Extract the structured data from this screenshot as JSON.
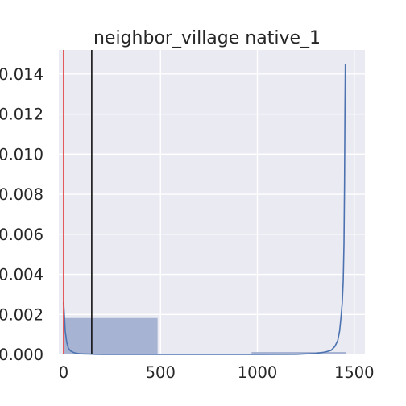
{
  "chart_data": {
    "type": "histogram",
    "title": "neighbor_village native_1",
    "xlim": [
      -25,
      1555
    ],
    "ylim": [
      0,
      0.0152
    ],
    "x_ticks": [
      0,
      500,
      1000,
      1500
    ],
    "x_tick_labels": [
      "0",
      "500",
      "1000",
      "1500"
    ],
    "y_ticks": [
      0.0,
      0.002,
      0.004,
      0.006,
      0.008,
      0.01,
      0.012,
      0.014
    ],
    "y_tick_labels": [
      "0.000",
      "0.002",
      "0.004",
      "0.006",
      "0.008",
      "0.010",
      "0.012",
      "0.014"
    ],
    "grid": true,
    "bins": [
      {
        "x0": 0,
        "x1": 485,
        "density": 0.00182
      },
      {
        "x0": 485,
        "x1": 970,
        "density": 3e-05
      },
      {
        "x0": 970,
        "x1": 1455,
        "density": 0.00012
      }
    ],
    "kde": {
      "x": [
        0,
        4,
        8,
        16,
        25,
        35,
        50,
        65,
        80,
        100,
        130,
        160,
        200,
        300,
        500,
        800,
        1000,
        1200,
        1300,
        1350,
        1380,
        1400,
        1415,
        1425,
        1432,
        1438,
        1443,
        1447,
        1450,
        1452,
        1454
      ],
      "y": [
        0.0026,
        0.0019,
        0.0012,
        0.0006,
        0.0003,
        0.00018,
        0.0001,
        6e-05,
        4e-05,
        3e-05,
        2e-05,
        1e-05,
        5e-06,
        2e-06,
        1e-06,
        1e-06,
        2e-06,
        1e-05,
        5e-05,
        0.00012,
        0.0002,
        0.0004,
        0.0007,
        0.0012,
        0.0019,
        0.0026,
        0.0037,
        0.0055,
        0.0085,
        0.012,
        0.0145
      ]
    },
    "vlines": [
      {
        "x": 0,
        "color": "#e03030"
      },
      {
        "x": 145,
        "color": "#111111"
      }
    ],
    "colors": {
      "plot_bg": "#eaeaf2",
      "grid": "#ffffff",
      "bar_fill": "#a3b0d0",
      "kde_line": "#4c72b0"
    }
  }
}
